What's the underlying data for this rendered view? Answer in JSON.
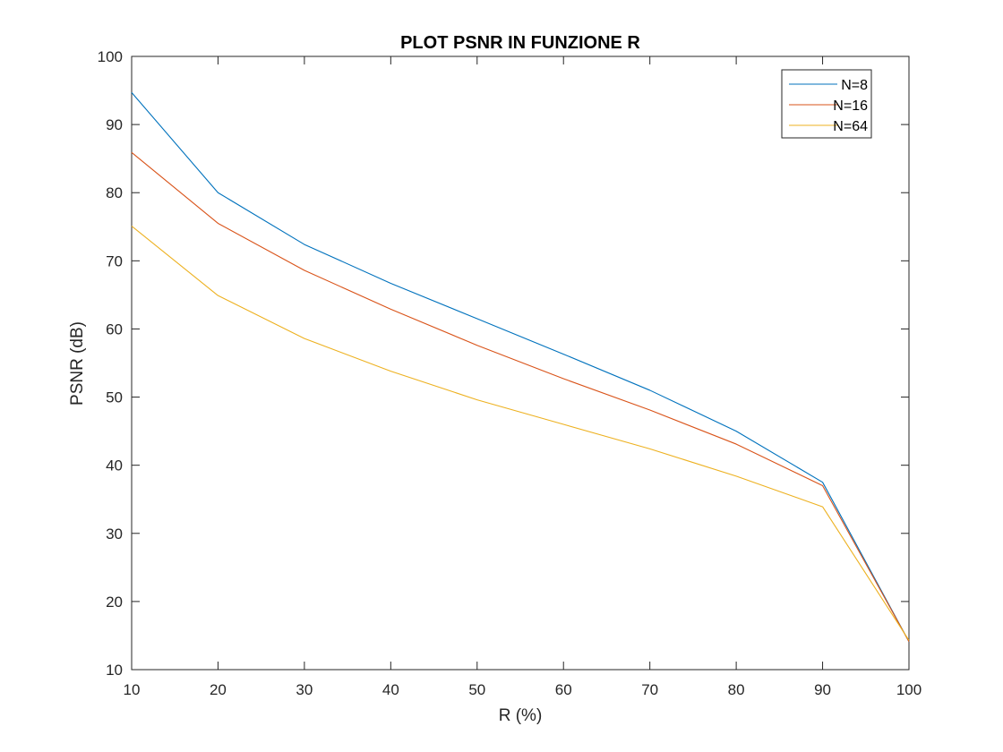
{
  "chart_data": {
    "type": "line",
    "title": "PLOT PSNR IN FUNZIONE R",
    "xlabel": "R (%)",
    "ylabel": "PSNR (dB)",
    "xlim": [
      10,
      100
    ],
    "ylim": [
      10,
      100
    ],
    "xticks": [
      10,
      20,
      30,
      40,
      50,
      60,
      70,
      80,
      90,
      100
    ],
    "yticks": [
      10,
      20,
      30,
      40,
      50,
      60,
      70,
      80,
      90,
      100
    ],
    "grid": false,
    "legend_position": "top-right",
    "x": [
      10,
      20,
      30,
      40,
      50,
      60,
      70,
      80,
      90,
      100
    ],
    "series": [
      {
        "name": "N=8",
        "color": "#0072BD",
        "values": [
          94.7,
          80.0,
          72.4,
          66.7,
          61.5,
          56.3,
          51.0,
          45.0,
          37.5,
          14.1
        ]
      },
      {
        "name": "N=16",
        "color": "#D95319",
        "values": [
          85.9,
          75.5,
          68.6,
          62.9,
          57.6,
          52.7,
          48.1,
          43.1,
          37.0,
          14.1
        ]
      },
      {
        "name": "N=64",
        "color": "#EDB120",
        "values": [
          75.1,
          64.9,
          58.6,
          53.8,
          49.6,
          46.0,
          42.4,
          38.4,
          33.9,
          14.3
        ]
      }
    ]
  }
}
